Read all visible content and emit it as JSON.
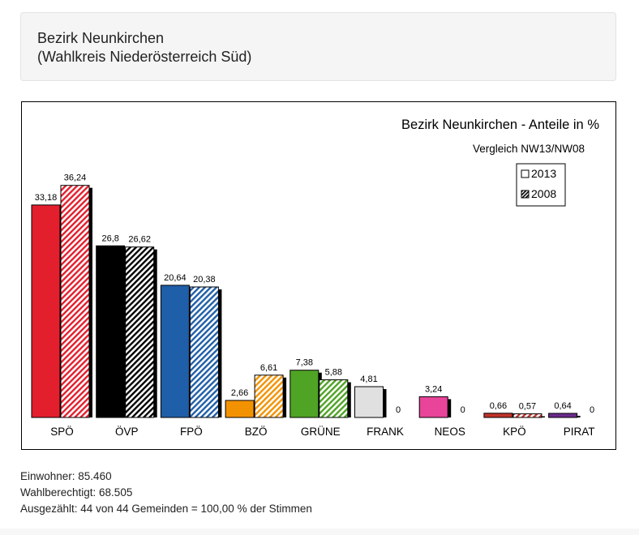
{
  "header": {
    "title": "Bezirk Neunkirchen",
    "subtitle": "(Wahlkreis Niederösterreich Süd)"
  },
  "chart_data": {
    "type": "bar",
    "title": "Bezirk Neunkirchen - Anteile in %",
    "subtitle": "Vergleich NW13/NW08",
    "categories": [
      "SPÖ",
      "ÖVP",
      "FPÖ",
      "BZÖ",
      "GRÜNE",
      "FRANK",
      "NEOS",
      "KPÖ",
      "PIRAT"
    ],
    "series": [
      {
        "name": "2013",
        "values": [
          33.18,
          26.8,
          20.64,
          2.66,
          7.38,
          4.81,
          3.24,
          0.66,
          0.64
        ],
        "labels": [
          "33,18",
          "26,8",
          "20,64",
          "2,66",
          "7,38",
          "4,81",
          "3,24",
          "0,66",
          "0,64"
        ]
      },
      {
        "name": "2008",
        "values": [
          36.24,
          26.62,
          20.38,
          6.61,
          5.88,
          0,
          0,
          0.57,
          0
        ],
        "labels": [
          "36,24",
          "26,62",
          "20,38",
          "6,61",
          "5,88",
          "0",
          "0",
          "0,57",
          "0"
        ]
      }
    ],
    "colors": [
      "#e31e2d",
      "#000000",
      "#1f5ea8",
      "#f39200",
      "#4fa325",
      "#e0e0e0",
      "#e8449a",
      "#c0332b",
      "#6a2a8c"
    ],
    "legend_position": "top-right",
    "ylim": [
      0,
      40
    ],
    "grid": false
  },
  "footer": {
    "einwohner": "Einwohner: 85.460",
    "wahlberechtigt": "Wahlberechtigt: 68.505",
    "ausgezaehlt": "Ausgezählt: 44 von 44 Gemeinden = 100,00 % der Stimmen"
  }
}
